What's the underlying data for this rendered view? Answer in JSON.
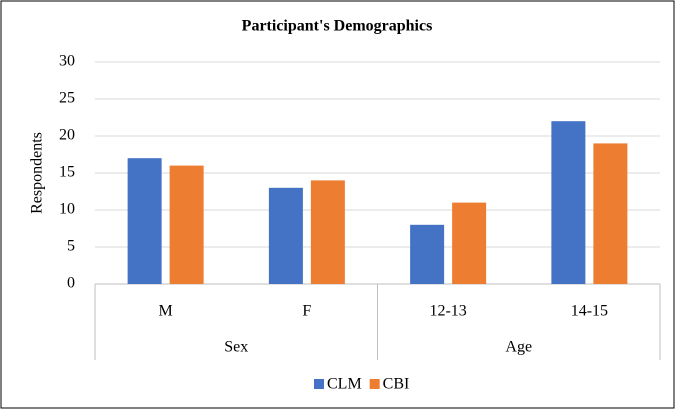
{
  "chart_data": {
    "type": "bar",
    "title": "Participant's Demographics",
    "y_label": "Respondents",
    "groups": [
      {
        "name": "Sex",
        "categories": [
          "M",
          "F"
        ]
      },
      {
        "name": "Age",
        "categories": [
          "12-13",
          "14-15"
        ]
      }
    ],
    "series": [
      {
        "name": "CLM",
        "color": "#4472c4",
        "values": [
          17,
          13,
          8,
          22
        ]
      },
      {
        "name": "CBI",
        "color": "#ed7d31",
        "values": [
          16,
          14,
          11,
          19
        ]
      }
    ],
    "ylim": [
      0,
      30
    ],
    "yticks": [
      0,
      5,
      10,
      15,
      20,
      25,
      30
    ],
    "grid": true,
    "legend": "bottom"
  }
}
